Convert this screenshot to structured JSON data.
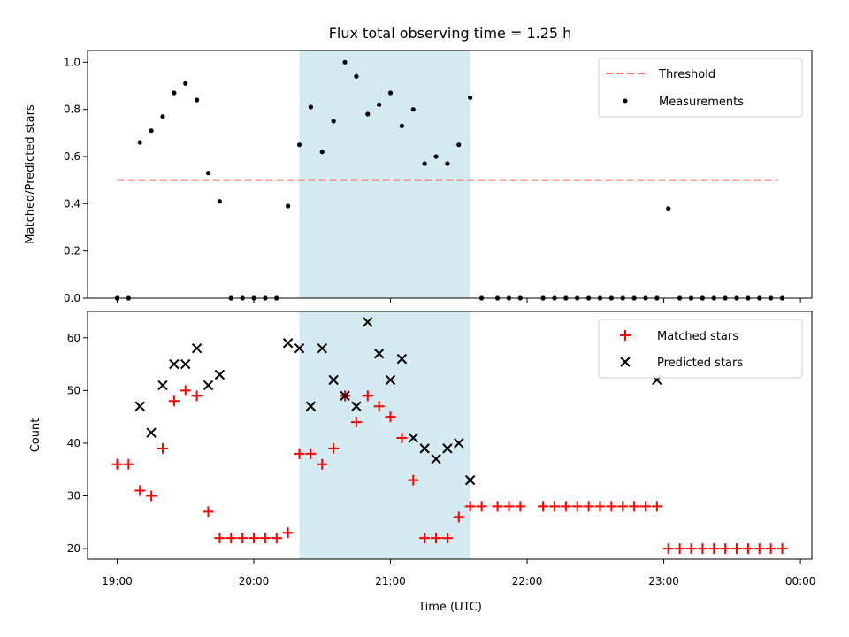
{
  "chart_data": [
    {
      "type": "scatter",
      "title": "Flux total observing time = 1.25 h",
      "ylabel": "Matched/Predicted stars",
      "xlim": [
        "18:47",
        "00:05"
      ],
      "ylim": [
        0,
        1.05
      ],
      "yticks": [
        "0.0",
        "0.2",
        "0.4",
        "0.6",
        "0.8",
        "1.0"
      ],
      "grid": false,
      "legend": "top-right",
      "highlight_span": {
        "start": "20:20",
        "end": "21:35",
        "color": "#d4eaf1"
      },
      "threshold": {
        "name": "Threshold",
        "value": 0.5,
        "from": "19:00",
        "to": "23:50",
        "color": "#ff7070",
        "style": "dashed"
      },
      "series": [
        {
          "name": "Measurements",
          "color": "#000000",
          "marker": "dot",
          "x": [
            "19:00",
            "19:05",
            "19:10",
            "19:15",
            "19:20",
            "19:25",
            "19:30",
            "19:35",
            "19:40",
            "19:45",
            "19:50",
            "19:55",
            "20:00",
            "20:05",
            "20:10",
            "20:15",
            "20:20",
            "20:25",
            "20:30",
            "20:35",
            "20:40",
            "20:45",
            "20:50",
            "20:55",
            "21:00",
            "21:05",
            "21:10",
            "21:15",
            "21:20",
            "21:25",
            "21:30",
            "21:35",
            "21:40",
            "21:47",
            "21:52",
            "21:57",
            "22:07",
            "22:12",
            "22:17",
            "22:22",
            "22:27",
            "22:32",
            "22:37",
            "22:42",
            "22:47",
            "22:52",
            "22:57",
            "23:02",
            "23:07",
            "23:12",
            "23:17",
            "23:22",
            "23:27",
            "23:32",
            "23:37",
            "23:42",
            "23:47",
            "23:52"
          ],
          "y": [
            0.0,
            0.0,
            0.66,
            0.71,
            0.77,
            0.87,
            0.91,
            0.84,
            0.53,
            0.41,
            0.0,
            0.0,
            0.0,
            0.0,
            0.0,
            0.39,
            0.65,
            0.81,
            0.62,
            0.75,
            1.0,
            0.94,
            0.78,
            0.82,
            0.87,
            0.73,
            0.8,
            0.57,
            0.6,
            0.57,
            0.65,
            0.85,
            0.0,
            0.0,
            0.0,
            0.0,
            0.0,
            0.0,
            0.0,
            0.0,
            0.0,
            0.0,
            0.0,
            0.0,
            0.0,
            0.0,
            0.0,
            0.38,
            0.0,
            0.0,
            0.0,
            0.0,
            0.0,
            0.0,
            0.0,
            0.0,
            0.0,
            0.0
          ]
        }
      ]
    },
    {
      "type": "scatter",
      "xlabel": "Time (UTC)",
      "ylabel": "Count",
      "xlim": [
        "18:47",
        "00:05"
      ],
      "ylim": [
        18,
        65
      ],
      "xticks": [
        "19:00",
        "20:00",
        "21:00",
        "22:00",
        "23:00",
        "00:00"
      ],
      "yticks": [
        "20",
        "30",
        "40",
        "50",
        "60"
      ],
      "grid": false,
      "legend": "top-right",
      "highlight_span": {
        "start": "20:20",
        "end": "21:35",
        "color": "#d4eaf1"
      },
      "series": [
        {
          "name": "Matched stars",
          "color": "#ff0000",
          "marker": "plus",
          "x": [
            "19:00",
            "19:05",
            "19:10",
            "19:15",
            "19:20",
            "19:25",
            "19:30",
            "19:35",
            "19:40",
            "19:45",
            "19:50",
            "19:55",
            "20:00",
            "20:05",
            "20:10",
            "20:15",
            "20:20",
            "20:25",
            "20:30",
            "20:35",
            "20:40",
            "20:45",
            "20:50",
            "20:55",
            "21:00",
            "21:05",
            "21:10",
            "21:15",
            "21:20",
            "21:25",
            "21:30",
            "21:35",
            "21:40",
            "21:47",
            "21:52",
            "21:57",
            "22:07",
            "22:12",
            "22:17",
            "22:22",
            "22:27",
            "22:32",
            "22:37",
            "22:42",
            "22:47",
            "22:52",
            "22:57",
            "23:02",
            "23:07",
            "23:12",
            "23:17",
            "23:22",
            "23:27",
            "23:32",
            "23:37",
            "23:42",
            "23:47",
            "23:52"
          ],
          "y": [
            36,
            36,
            31,
            30,
            39,
            48,
            50,
            49,
            27,
            22,
            22,
            22,
            22,
            22,
            22,
            23,
            38,
            38,
            36,
            39,
            49,
            44,
            49,
            47,
            45,
            41,
            33,
            22,
            22,
            22,
            26,
            28,
            28,
            28,
            28,
            28,
            28,
            28,
            28,
            28,
            28,
            28,
            28,
            28,
            28,
            28,
            28,
            20,
            20,
            20,
            20,
            20,
            20,
            20,
            20,
            20,
            20,
            20
          ]
        },
        {
          "name": "Predicted stars",
          "color": "#000000",
          "marker": "x",
          "x": [
            "19:10",
            "19:15",
            "19:20",
            "19:25",
            "19:30",
            "19:35",
            "19:40",
            "19:45",
            "20:15",
            "20:20",
            "20:25",
            "20:30",
            "20:35",
            "20:40",
            "20:45",
            "20:50",
            "20:55",
            "21:00",
            "21:05",
            "21:10",
            "21:15",
            "21:20",
            "21:25",
            "21:30",
            "21:35",
            "22:57"
          ],
          "y": [
            47,
            42,
            51,
            55,
            55,
            58,
            51,
            53,
            59,
            58,
            47,
            58,
            52,
            49,
            47,
            63,
            57,
            52,
            56,
            41,
            39,
            37,
            39,
            40,
            33,
            52
          ]
        }
      ]
    }
  ]
}
